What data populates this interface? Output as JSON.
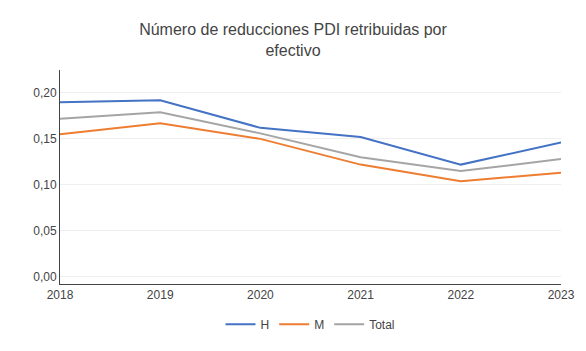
{
  "chart_data": {
    "type": "line",
    "title": "Número de reducciones PDI retribuidas por\nefectivo",
    "x": [
      2018,
      2019,
      2020,
      2021,
      2022,
      2023
    ],
    "series": [
      {
        "name": "H",
        "color": "#4472C4",
        "values": [
          0.19,
          0.192,
          0.162,
          0.152,
          0.122,
          0.146
        ]
      },
      {
        "name": "M",
        "color": "#ED7D31",
        "values": [
          0.155,
          0.167,
          0.15,
          0.122,
          0.104,
          0.113
        ]
      },
      {
        "name": "Total",
        "color": "#A5A5A5",
        "values": [
          0.172,
          0.179,
          0.156,
          0.13,
          0.115,
          0.128
        ]
      }
    ],
    "xlim": [
      2018,
      2023
    ],
    "xticks": [
      2018,
      2019,
      2020,
      2021,
      2022,
      2023
    ],
    "ylim": [
      -0.008,
      0.225
    ],
    "yticks": [
      {
        "value": 0.0,
        "label": "0,00"
      },
      {
        "value": 0.05,
        "label": "0,05"
      },
      {
        "value": 0.1,
        "label": "0,10"
      },
      {
        "value": 0.15,
        "label": "0,15"
      },
      {
        "value": 0.2,
        "label": "0,20"
      }
    ],
    "grid": true,
    "legend": "bottom"
  }
}
